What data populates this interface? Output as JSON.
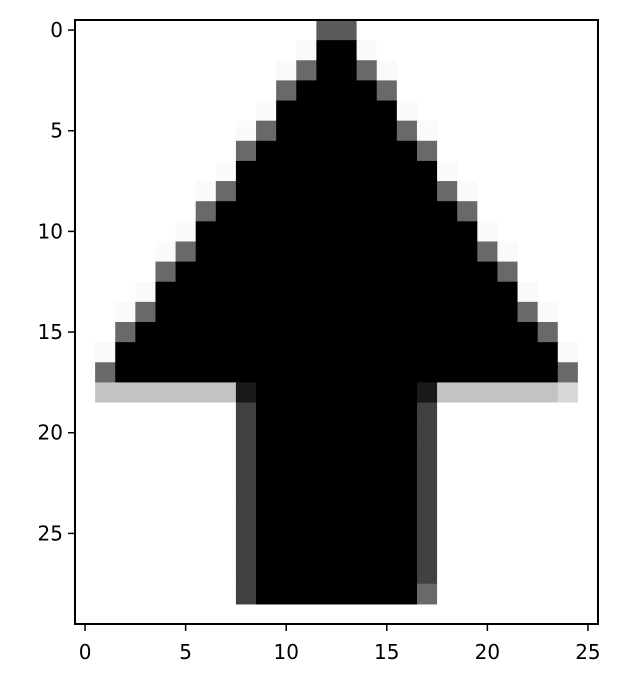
{
  "chart_data": {
    "type": "heatmap",
    "title": "",
    "xlabel": "",
    "ylabel": "",
    "colormap": "gray_r",
    "value_range": [
      0,
      255
    ],
    "xlim": [
      -0.5,
      25.5
    ],
    "ylim": [
      29.5,
      -0.5
    ],
    "xticks": [
      0,
      5,
      10,
      15,
      20,
      25
    ],
    "yticks": [
      0,
      5,
      10,
      15,
      20,
      25
    ],
    "xtick_labels": [
      "0",
      "5",
      "10",
      "15",
      "20",
      "25"
    ],
    "ytick_labels": [
      "0",
      "5",
      "10",
      "15",
      "20",
      "25"
    ],
    "grid": false,
    "rows": 29,
    "cols": 26,
    "image": [
      [
        0,
        0,
        0,
        0,
        0,
        0,
        0,
        0,
        0,
        0,
        0,
        0,
        165,
        165,
        0,
        0,
        0,
        0,
        0,
        0,
        0,
        0,
        0,
        0,
        0,
        0
      ],
      [
        0,
        0,
        0,
        0,
        0,
        0,
        0,
        0,
        0,
        0,
        0,
        5,
        255,
        255,
        5,
        0,
        0,
        0,
        0,
        0,
        0,
        0,
        0,
        0,
        0,
        0
      ],
      [
        0,
        0,
        0,
        0,
        0,
        0,
        0,
        0,
        0,
        0,
        5,
        150,
        255,
        255,
        150,
        5,
        0,
        0,
        0,
        0,
        0,
        0,
        0,
        0,
        0,
        0
      ],
      [
        0,
        0,
        0,
        0,
        0,
        0,
        0,
        0,
        0,
        0,
        150,
        255,
        255,
        255,
        255,
        150,
        0,
        0,
        0,
        0,
        0,
        0,
        0,
        0,
        0,
        0
      ],
      [
        0,
        0,
        0,
        0,
        0,
        0,
        0,
        0,
        0,
        5,
        255,
        255,
        255,
        255,
        255,
        255,
        5,
        0,
        0,
        0,
        0,
        0,
        0,
        0,
        0,
        0
      ],
      [
        0,
        0,
        0,
        0,
        0,
        0,
        0,
        0,
        5,
        150,
        255,
        255,
        255,
        255,
        255,
        255,
        150,
        5,
        0,
        0,
        0,
        0,
        0,
        0,
        0,
        0
      ],
      [
        0,
        0,
        0,
        0,
        0,
        0,
        0,
        0,
        150,
        255,
        255,
        255,
        255,
        255,
        255,
        255,
        255,
        150,
        0,
        0,
        0,
        0,
        0,
        0,
        0,
        0
      ],
      [
        0,
        0,
        0,
        0,
        0,
        0,
        0,
        5,
        255,
        255,
        255,
        255,
        255,
        255,
        255,
        255,
        255,
        255,
        5,
        0,
        0,
        0,
        0,
        0,
        0,
        0
      ],
      [
        0,
        0,
        0,
        0,
        0,
        0,
        5,
        150,
        255,
        255,
        255,
        255,
        255,
        255,
        255,
        255,
        255,
        255,
        150,
        5,
        0,
        0,
        0,
        0,
        0,
        0
      ],
      [
        0,
        0,
        0,
        0,
        0,
        0,
        150,
        255,
        255,
        255,
        255,
        255,
        255,
        255,
        255,
        255,
        255,
        255,
        255,
        150,
        0,
        0,
        0,
        0,
        0,
        0
      ],
      [
        0,
        0,
        0,
        0,
        0,
        5,
        255,
        255,
        255,
        255,
        255,
        255,
        255,
        255,
        255,
        255,
        255,
        255,
        255,
        255,
        5,
        0,
        0,
        0,
        0,
        0
      ],
      [
        0,
        0,
        0,
        0,
        5,
        150,
        255,
        255,
        255,
        255,
        255,
        255,
        255,
        255,
        255,
        255,
        255,
        255,
        255,
        255,
        150,
        5,
        0,
        0,
        0,
        0
      ],
      [
        0,
        0,
        0,
        0,
        150,
        255,
        255,
        255,
        255,
        255,
        255,
        255,
        255,
        255,
        255,
        255,
        255,
        255,
        255,
        255,
        255,
        150,
        0,
        0,
        0,
        0
      ],
      [
        0,
        0,
        0,
        5,
        255,
        255,
        255,
        255,
        255,
        255,
        255,
        255,
        255,
        255,
        255,
        255,
        255,
        255,
        255,
        255,
        255,
        255,
        5,
        0,
        0,
        0
      ],
      [
        0,
        0,
        5,
        150,
        255,
        255,
        255,
        255,
        255,
        255,
        255,
        255,
        255,
        255,
        255,
        255,
        255,
        255,
        255,
        255,
        255,
        255,
        150,
        5,
        0,
        0
      ],
      [
        0,
        0,
        150,
        255,
        255,
        255,
        255,
        255,
        255,
        255,
        255,
        255,
        255,
        255,
        255,
        255,
        255,
        255,
        255,
        255,
        255,
        255,
        255,
        150,
        0,
        0
      ],
      [
        0,
        5,
        255,
        255,
        255,
        255,
        255,
        255,
        255,
        255,
        255,
        255,
        255,
        255,
        255,
        255,
        255,
        255,
        255,
        255,
        255,
        255,
        255,
        255,
        5,
        0
      ],
      [
        0,
        150,
        255,
        255,
        255,
        255,
        255,
        255,
        255,
        255,
        255,
        255,
        255,
        255,
        255,
        255,
        255,
        255,
        255,
        255,
        255,
        255,
        255,
        255,
        150,
        0
      ],
      [
        0,
        60,
        60,
        60,
        60,
        60,
        60,
        60,
        230,
        255,
        255,
        255,
        255,
        255,
        255,
        255,
        255,
        230,
        60,
        60,
        60,
        60,
        60,
        60,
        40,
        0
      ],
      [
        0,
        0,
        0,
        0,
        0,
        0,
        0,
        0,
        190,
        255,
        255,
        255,
        255,
        255,
        255,
        255,
        255,
        190,
        0,
        0,
        0,
        0,
        0,
        0,
        0,
        0
      ],
      [
        0,
        0,
        0,
        0,
        0,
        0,
        0,
        0,
        190,
        255,
        255,
        255,
        255,
        255,
        255,
        255,
        255,
        190,
        0,
        0,
        0,
        0,
        0,
        0,
        0,
        0
      ],
      [
        0,
        0,
        0,
        0,
        0,
        0,
        0,
        0,
        190,
        255,
        255,
        255,
        255,
        255,
        255,
        255,
        255,
        190,
        0,
        0,
        0,
        0,
        0,
        0,
        0,
        0
      ],
      [
        0,
        0,
        0,
        0,
        0,
        0,
        0,
        0,
        190,
        255,
        255,
        255,
        255,
        255,
        255,
        255,
        255,
        190,
        0,
        0,
        0,
        0,
        0,
        0,
        0,
        0
      ],
      [
        0,
        0,
        0,
        0,
        0,
        0,
        0,
        0,
        190,
        255,
        255,
        255,
        255,
        255,
        255,
        255,
        255,
        190,
        0,
        0,
        0,
        0,
        0,
        0,
        0,
        0
      ],
      [
        0,
        0,
        0,
        0,
        0,
        0,
        0,
        0,
        190,
        255,
        255,
        255,
        255,
        255,
        255,
        255,
        255,
        190,
        0,
        0,
        0,
        0,
        0,
        0,
        0,
        0
      ],
      [
        0,
        0,
        0,
        0,
        0,
        0,
        0,
        0,
        190,
        255,
        255,
        255,
        255,
        255,
        255,
        255,
        255,
        190,
        0,
        0,
        0,
        0,
        0,
        0,
        0,
        0
      ],
      [
        0,
        0,
        0,
        0,
        0,
        0,
        0,
        0,
        190,
        255,
        255,
        255,
        255,
        255,
        255,
        255,
        255,
        190,
        0,
        0,
        0,
        0,
        0,
        0,
        0,
        0
      ],
      [
        0,
        0,
        0,
        0,
        0,
        0,
        0,
        0,
        190,
        255,
        255,
        255,
        255,
        255,
        255,
        255,
        255,
        190,
        0,
        0,
        0,
        0,
        0,
        0,
        0,
        0
      ],
      [
        0,
        0,
        0,
        0,
        0,
        0,
        0,
        0,
        190,
        255,
        255,
        255,
        255,
        255,
        255,
        255,
        255,
        150,
        0,
        0,
        0,
        0,
        0,
        0,
        0,
        0
      ]
    ]
  }
}
